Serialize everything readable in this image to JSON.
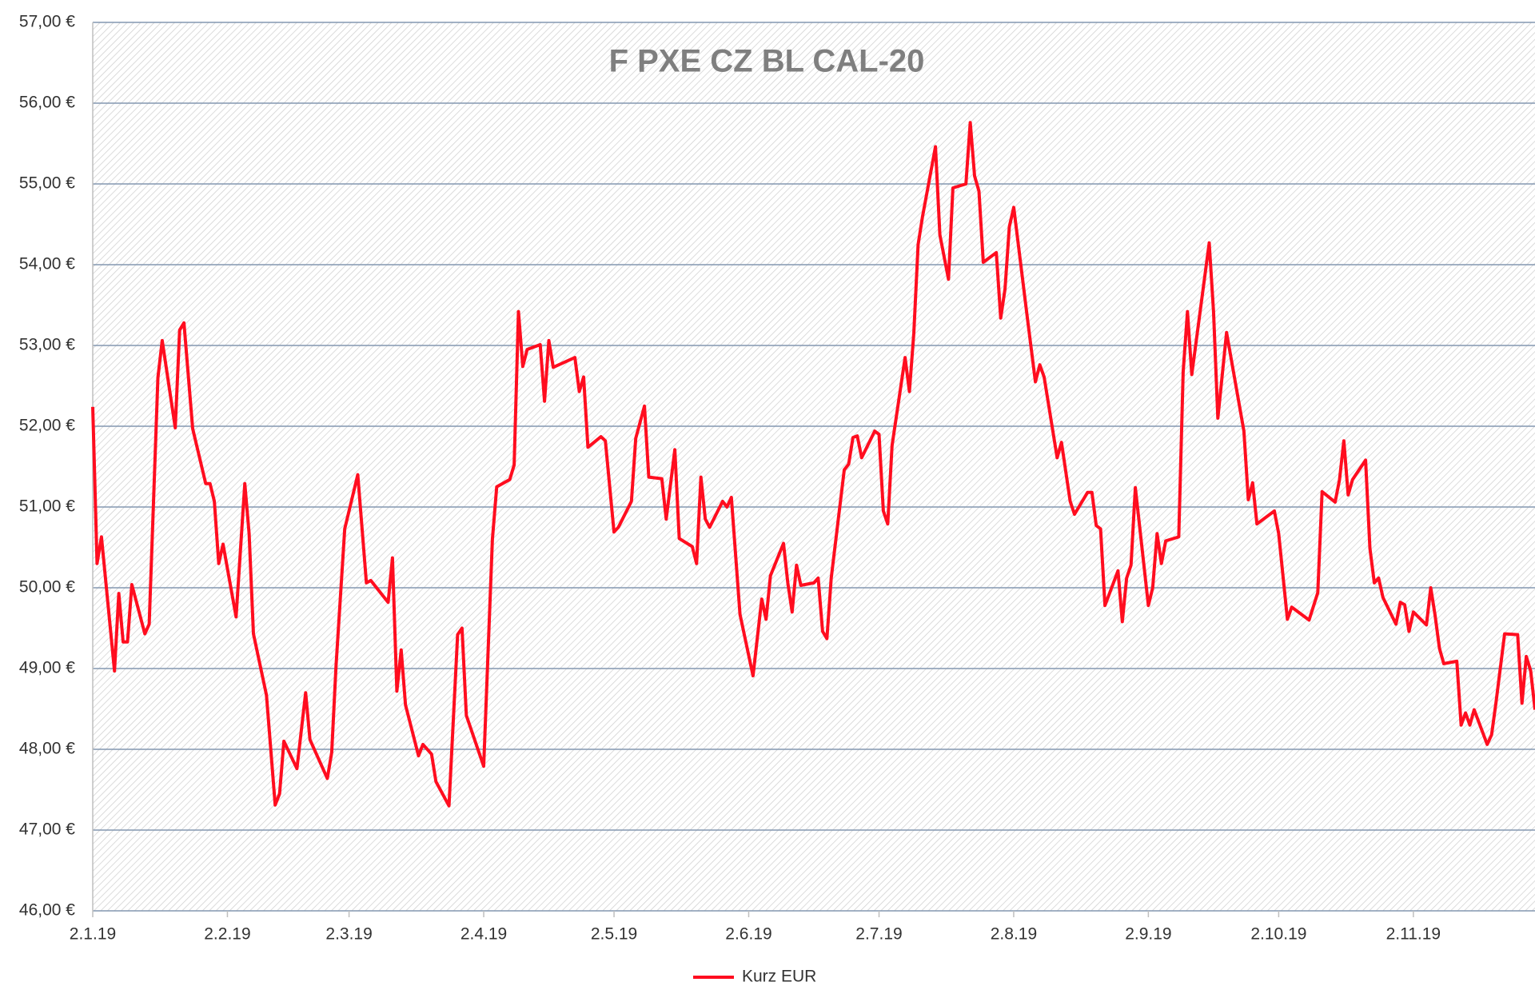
{
  "chart_data": {
    "type": "line",
    "title": "F PXE CZ BL CAL-20",
    "x": [
      "2019-01-02",
      "2019-01-03",
      "2019-01-04",
      "2019-01-07",
      "2019-01-08",
      "2019-01-09",
      "2019-01-10",
      "2019-01-11",
      "2019-01-14",
      "2019-01-15",
      "2019-01-17",
      "2019-01-18",
      "2019-01-21",
      "2019-01-22",
      "2019-01-23",
      "2019-01-25",
      "2019-01-28",
      "2019-01-29",
      "2019-01-30",
      "2019-01-31",
      "2019-02-01",
      "2019-02-04",
      "2019-02-06",
      "2019-02-07",
      "2019-02-08",
      "2019-02-11",
      "2019-02-13",
      "2019-02-14",
      "2019-02-15",
      "2019-02-18",
      "2019-02-20",
      "2019-02-21",
      "2019-02-25",
      "2019-02-26",
      "2019-02-27",
      "2019-03-01",
      "2019-03-04",
      "2019-03-06",
      "2019-03-07",
      "2019-03-11",
      "2019-03-12",
      "2019-03-13",
      "2019-03-14",
      "2019-03-15",
      "2019-03-18",
      "2019-03-19",
      "2019-03-21",
      "2019-03-22",
      "2019-03-25",
      "2019-03-27",
      "2019-03-28",
      "2019-03-29",
      "2019-04-02",
      "2019-04-04",
      "2019-04-05",
      "2019-04-08",
      "2019-04-09",
      "2019-04-10",
      "2019-04-11",
      "2019-04-12",
      "2019-04-15",
      "2019-04-16",
      "2019-04-17",
      "2019-04-18",
      "2019-04-23",
      "2019-04-24",
      "2019-04-25",
      "2019-04-26",
      "2019-04-29",
      "2019-04-30",
      "2019-05-02",
      "2019-05-03",
      "2019-05-06",
      "2019-05-07",
      "2019-05-09",
      "2019-05-10",
      "2019-05-13",
      "2019-05-14",
      "2019-05-16",
      "2019-05-17",
      "2019-05-20",
      "2019-05-21",
      "2019-05-22",
      "2019-05-23",
      "2019-05-24",
      "2019-05-27",
      "2019-05-28",
      "2019-05-29",
      "2019-05-31",
      "2019-06-03",
      "2019-06-05",
      "2019-06-06",
      "2019-06-07",
      "2019-06-10",
      "2019-06-11",
      "2019-06-12",
      "2019-06-13",
      "2019-06-14",
      "2019-06-17",
      "2019-06-18",
      "2019-06-19",
      "2019-06-20",
      "2019-06-21",
      "2019-06-24",
      "2019-06-25",
      "2019-06-26",
      "2019-06-27",
      "2019-06-28",
      "2019-07-01",
      "2019-07-02",
      "2019-07-03",
      "2019-07-04",
      "2019-07-05",
      "2019-07-08",
      "2019-07-09",
      "2019-07-10",
      "2019-07-11",
      "2019-07-12",
      "2019-07-15",
      "2019-07-16",
      "2019-07-18",
      "2019-07-19",
      "2019-07-22",
      "2019-07-23",
      "2019-07-24",
      "2019-07-25",
      "2019-07-26",
      "2019-07-29",
      "2019-07-30",
      "2019-07-31",
      "2019-08-01",
      "2019-08-02",
      "2019-08-05",
      "2019-08-07",
      "2019-08-08",
      "2019-08-09",
      "2019-08-12",
      "2019-08-13",
      "2019-08-15",
      "2019-08-16",
      "2019-08-19",
      "2019-08-20",
      "2019-08-21",
      "2019-08-22",
      "2019-08-23",
      "2019-08-26",
      "2019-08-27",
      "2019-08-28",
      "2019-08-29",
      "2019-08-30",
      "2019-09-02",
      "2019-09-03",
      "2019-09-04",
      "2019-09-05",
      "2019-09-06",
      "2019-09-09",
      "2019-09-10",
      "2019-09-11",
      "2019-09-12",
      "2019-09-16",
      "2019-09-17",
      "2019-09-18",
      "2019-09-20",
      "2019-09-24",
      "2019-09-25",
      "2019-09-26",
      "2019-09-27",
      "2019-10-01",
      "2019-10-02",
      "2019-10-04",
      "2019-10-05",
      "2019-10-09",
      "2019-10-11",
      "2019-10-12",
      "2019-10-15",
      "2019-10-16",
      "2019-10-17",
      "2019-10-18",
      "2019-10-19",
      "2019-10-22",
      "2019-10-23",
      "2019-10-24",
      "2019-10-25",
      "2019-10-26",
      "2019-10-29",
      "2019-10-30",
      "2019-10-31",
      "2019-11-01",
      "2019-11-02",
      "2019-11-05",
      "2019-11-06",
      "2019-11-07",
      "2019-11-08",
      "2019-11-09",
      "2019-11-12",
      "2019-11-13",
      "2019-11-14",
      "2019-11-15",
      "2019-11-16",
      "2019-11-19",
      "2019-11-20",
      "2019-11-21",
      "2019-11-23",
      "2019-11-26",
      "2019-11-27",
      "2019-11-28",
      "2019-11-29",
      "2019-11-30"
    ],
    "series": [
      {
        "name": "Kurz EUR",
        "color": "#ff0d1f",
        "values": [
          52.24,
          50.3,
          50.63,
          48.97,
          49.93,
          49.33,
          49.33,
          50.04,
          49.43,
          49.55,
          52.6,
          53.06,
          51.98,
          53.19,
          53.28,
          51.97,
          51.29,
          51.29,
          51.07,
          50.3,
          50.54,
          49.64,
          51.29,
          50.67,
          49.43,
          48.67,
          47.31,
          47.45,
          48.1,
          47.76,
          48.7,
          48.12,
          47.64,
          47.96,
          49.03,
          50.73,
          51.4,
          50.06,
          50.09,
          49.82,
          50.37,
          48.72,
          49.23,
          48.55,
          47.92,
          48.06,
          47.94,
          47.6,
          47.3,
          49.42,
          49.5,
          48.42,
          47.79,
          50.6,
          51.25,
          51.34,
          51.52,
          53.42,
          52.74,
          52.95,
          53.01,
          52.31,
          53.06,
          52.73,
          52.85,
          52.43,
          52.61,
          51.74,
          51.87,
          51.82,
          50.69,
          50.75,
          51.07,
          51.85,
          52.25,
          51.37,
          51.35,
          50.85,
          51.71,
          50.61,
          50.51,
          50.3,
          51.37,
          50.85,
          50.75,
          51.07,
          51.0,
          51.12,
          49.67,
          48.91,
          49.86,
          49.61,
          50.15,
          50.55,
          50.06,
          49.7,
          50.28,
          50.03,
          50.06,
          50.12,
          49.46,
          49.37,
          50.12,
          51.46,
          51.53,
          51.86,
          51.88,
          51.61,
          51.94,
          51.9,
          50.95,
          50.79,
          51.76,
          52.85,
          52.43,
          53.15,
          54.25,
          54.59,
          55.46,
          54.37,
          53.82,
          54.95,
          55.0,
          55.76,
          55.1,
          54.91,
          54.03,
          54.15,
          53.34,
          53.7,
          54.47,
          54.71,
          53.4,
          52.55,
          52.76,
          52.61,
          51.61,
          51.8,
          51.07,
          50.91,
          51.18,
          51.18,
          50.77,
          50.73,
          49.78,
          50.21,
          49.58,
          50.12,
          50.28,
          51.24,
          49.78,
          50.0,
          50.67,
          50.3,
          50.58,
          50.63,
          52.67,
          53.42,
          52.64,
          54.27,
          53.42,
          52.1,
          53.16,
          51.94,
          51.09,
          51.3,
          50.79,
          50.95,
          50.67,
          49.61,
          49.76,
          49.6,
          49.94,
          51.19,
          51.06,
          51.34,
          51.82,
          51.15,
          51.34,
          51.58,
          50.49,
          50.06,
          50.12,
          49.88,
          49.55,
          49.82,
          49.79,
          49.46,
          49.7,
          49.54,
          50.0,
          49.66,
          49.25,
          49.06,
          49.09,
          48.3,
          48.45,
          48.3,
          48.49,
          48.06,
          48.18,
          48.57,
          49.43,
          49.42,
          48.57,
          49.15,
          48.97,
          48.49
        ]
      }
    ],
    "xlim": [
      "2019-01-02",
      "2019-11-30"
    ],
    "xticks": [
      {
        "value": "2019-01-02",
        "label": "2.1.19"
      },
      {
        "value": "2019-02-02",
        "label": "2.2.19"
      },
      {
        "value": "2019-03-02",
        "label": "2.3.19"
      },
      {
        "value": "2019-04-02",
        "label": "2.4.19"
      },
      {
        "value": "2019-05-02",
        "label": "2.5.19"
      },
      {
        "value": "2019-06-02",
        "label": "2.6.19"
      },
      {
        "value": "2019-07-02",
        "label": "2.7.19"
      },
      {
        "value": "2019-08-02",
        "label": "2.8.19"
      },
      {
        "value": "2019-09-02",
        "label": "2.9.19"
      },
      {
        "value": "2019-10-02",
        "label": "2.10.19"
      },
      {
        "value": "2019-11-02",
        "label": "2.11.19"
      }
    ],
    "ylim": [
      46,
      57
    ],
    "yticks": [
      {
        "value": 46,
        "label": "46,00 €"
      },
      {
        "value": 47,
        "label": "47,00 €"
      },
      {
        "value": 48,
        "label": "48,00 €"
      },
      {
        "value": 49,
        "label": "49,00 €"
      },
      {
        "value": 50,
        "label": "50,00 €"
      },
      {
        "value": 51,
        "label": "51,00 €"
      },
      {
        "value": 52,
        "label": "52,00 €"
      },
      {
        "value": 53,
        "label": "53,00 €"
      },
      {
        "value": 54,
        "label": "54,00 €"
      },
      {
        "value": 55,
        "label": "55,00 €"
      },
      {
        "value": 56,
        "label": "56,00 €"
      },
      {
        "value": 57,
        "label": "57,00 €"
      }
    ],
    "grid": true,
    "legend": "bottom"
  }
}
